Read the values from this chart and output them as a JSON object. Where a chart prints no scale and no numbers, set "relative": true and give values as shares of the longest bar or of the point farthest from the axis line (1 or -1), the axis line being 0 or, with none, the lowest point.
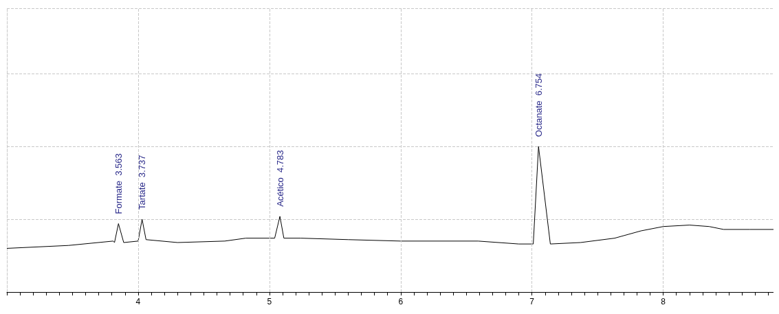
{
  "chart_data": {
    "type": "line",
    "relative": true,
    "grid": true,
    "marker": "none",
    "line_style": "solid",
    "x": [
      3.0,
      3.47,
      3.81,
      3.82,
      3.85,
      3.89,
      4.0,
      4.03,
      4.06,
      4.3,
      4.66,
      4.82,
      5.0,
      5.04,
      5.08,
      5.11,
      5.24,
      5.6,
      6.0,
      6.59,
      6.9,
      7.01,
      7.05,
      7.14,
      7.37,
      7.63,
      7.83,
      8.0,
      8.2,
      8.35,
      8.46,
      8.66,
      8.84
    ],
    "series": [
      {
        "color": "#000000",
        "values": [
          0.3,
          0.32,
          0.35,
          0.34,
          0.47,
          0.34,
          0.35,
          0.5,
          0.36,
          0.34,
          0.35,
          0.37,
          0.37,
          0.37,
          0.52,
          0.37,
          0.37,
          0.36,
          0.35,
          0.35,
          0.33,
          0.33,
          1,
          0.33,
          0.34,
          0.37,
          0.42,
          0.45,
          0.46,
          0.45,
          0.43,
          0.43,
          0.43
        ]
      }
    ],
    "xlim": [
      3.0,
      8.84
    ],
    "xticks": [
      {
        "value": 3.0,
        "label": null
      },
      {
        "value": 3.1,
        "label": null
      },
      {
        "value": 3.2,
        "label": null
      },
      {
        "value": 3.3,
        "label": null
      },
      {
        "value": 3.4,
        "label": null
      },
      {
        "value": 3.5,
        "label": null
      },
      {
        "value": 3.6,
        "label": null
      },
      {
        "value": 3.7,
        "label": null
      },
      {
        "value": 3.8,
        "label": null
      },
      {
        "value": 3.9,
        "label": null
      },
      4,
      {
        "value": 4.1,
        "label": null
      },
      {
        "value": 4.2,
        "label": null
      },
      {
        "value": 4.3,
        "label": null
      },
      {
        "value": 4.4,
        "label": null
      },
      {
        "value": 4.5,
        "label": null
      },
      {
        "value": 4.6,
        "label": null
      },
      {
        "value": 4.7,
        "label": null
      },
      {
        "value": 4.8,
        "label": null
      },
      {
        "value": 4.9,
        "label": null
      },
      5,
      {
        "value": 5.1,
        "label": null
      },
      {
        "value": 5.2,
        "label": null
      },
      {
        "value": 5.3,
        "label": null
      },
      {
        "value": 5.4,
        "label": null
      },
      {
        "value": 5.5,
        "label": null
      },
      {
        "value": 5.6,
        "label": null
      },
      {
        "value": 5.7,
        "label": null
      },
      {
        "value": 5.8,
        "label": null
      },
      {
        "value": 5.9,
        "label": null
      },
      6,
      {
        "value": 6.1,
        "label": null
      },
      {
        "value": 6.2,
        "label": null
      },
      {
        "value": 6.3,
        "label": null
      },
      {
        "value": 6.4,
        "label": null
      },
      {
        "value": 6.5,
        "label": null
      },
      {
        "value": 6.6,
        "label": null
      },
      {
        "value": 6.7,
        "label": null
      },
      {
        "value": 6.8,
        "label": null
      },
      {
        "value": 6.9,
        "label": null
      },
      7,
      {
        "value": 7.1,
        "label": null
      },
      {
        "value": 7.2,
        "label": null
      },
      {
        "value": 7.3,
        "label": null
      },
      {
        "value": 7.4,
        "label": null
      },
      {
        "value": 7.5,
        "label": null
      },
      {
        "value": 7.6,
        "label": null
      },
      {
        "value": 7.7,
        "label": null
      },
      {
        "value": 7.8,
        "label": null
      },
      {
        "value": 7.9,
        "label": null
      },
      8,
      {
        "value": 8.1,
        "label": null
      },
      {
        "value": 8.2,
        "label": null
      },
      {
        "value": 8.3,
        "label": null
      },
      {
        "value": 8.4,
        "label": null
      },
      {
        "value": 8.5,
        "label": null
      },
      {
        "value": 8.6,
        "label": null
      },
      {
        "value": 8.7,
        "label": null
      },
      {
        "value": 8.8,
        "label": null
      }
    ],
    "annotations": [
      {
        "text": "Formate  3.563",
        "x": 3.85,
        "y": 0.47
      },
      {
        "text": "Tartate  3.737",
        "x": 4.03,
        "y": 0.5
      },
      {
        "text": "Acético  4.783",
        "x": 5.08,
        "y": 0.52
      },
      {
        "text": "Octanate  6.754",
        "x": 7.05,
        "y": 1
      }
    ]
  }
}
